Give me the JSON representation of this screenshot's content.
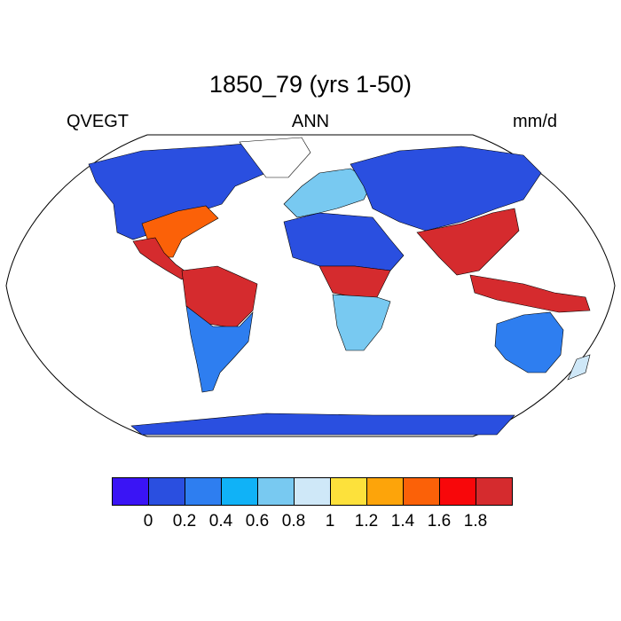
{
  "title": "1850_79 (yrs 1-50)",
  "subtitle_left": "QVEGT",
  "subtitle_center": "ANN",
  "subtitle_right": "mm/d",
  "colorbar": {
    "colors": [
      "#3a14f5",
      "#2a4fe0",
      "#2e7ef0",
      "#10b2f7",
      "#78c9f1",
      "#cfe8f8",
      "#fde13b",
      "#fda40a",
      "#fb6108",
      "#f8070a",
      "#d52b2e"
    ],
    "labels": [
      "0",
      "0.2",
      "0.4",
      "0.6",
      "0.8",
      "1",
      "1.2",
      "1.4",
      "1.6",
      "1.8"
    ]
  },
  "chart_data": {
    "type": "heatmap",
    "title": "1850_79 (yrs 1-50)",
    "variable": "QVEGT",
    "period": "ANN",
    "units": "mm/d",
    "projection": "Robinson",
    "levels": [
      0,
      0.2,
      0.4,
      0.6,
      0.8,
      1,
      1.2,
      1.4,
      1.6,
      1.8
    ],
    "regions": [
      {
        "name": "north-america-north",
        "value": 0.1
      },
      {
        "name": "north-america-southeast",
        "value": 1.4
      },
      {
        "name": "central-america",
        "value": 1.9
      },
      {
        "name": "greenland",
        "value": null
      },
      {
        "name": "south-america-amazon",
        "value": 1.9
      },
      {
        "name": "south-america-south",
        "value": 0.3
      },
      {
        "name": "europe",
        "value": 0.7
      },
      {
        "name": "africa-north",
        "value": 0.1
      },
      {
        "name": "africa-central",
        "value": 1.9
      },
      {
        "name": "africa-south",
        "value": 0.6
      },
      {
        "name": "asia-north",
        "value": 0.1
      },
      {
        "name": "asia-southeast",
        "value": 1.8
      },
      {
        "name": "maritime-continent",
        "value": 1.9
      },
      {
        "name": "australia",
        "value": 0.2
      },
      {
        "name": "new-zealand",
        "value": 0.9
      },
      {
        "name": "antarctica",
        "value": 0.1
      }
    ]
  }
}
